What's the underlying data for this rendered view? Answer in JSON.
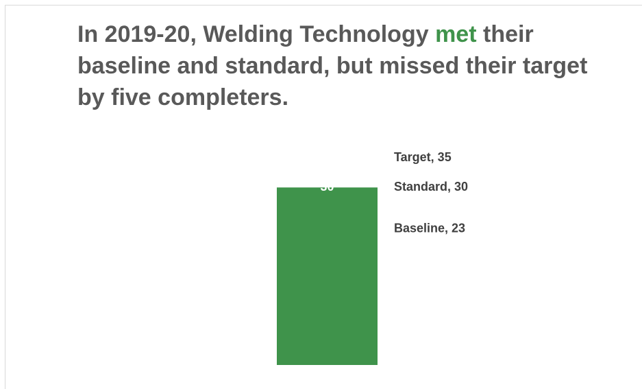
{
  "chart_data": {
    "type": "bar",
    "title": {
      "before": "In 2019-20, Welding Technology",
      "highlight": "met",
      "after": "their baseline and standard, but missed their target by five completers."
    },
    "highlight_color": "#3f934b",
    "categories": [
      null
    ],
    "values": [
      30
    ],
    "color": "#3f934b",
    "ylim": [
      0,
      40
    ],
    "annotations": [
      {
        "label": "Target, 35",
        "value": 35
      },
      {
        "label": "Standard, 30",
        "value": 30
      },
      {
        "label": "Baseline, 23",
        "value": 23
      }
    ]
  }
}
